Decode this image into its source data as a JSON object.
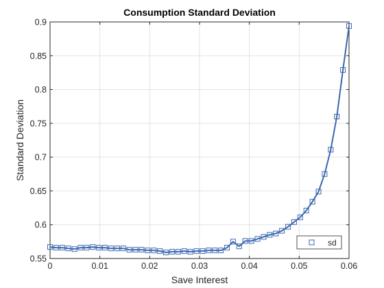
{
  "chart_data": {
    "type": "line",
    "title": "Consumption Standard Deviation",
    "xlabel": "Save Interest",
    "ylabel": "Standard Deviation",
    "xlim": [
      0,
      0.06
    ],
    "ylim": [
      0.55,
      0.9
    ],
    "x_ticks": [
      "0",
      "0.01",
      "0.02",
      "0.03",
      "0.04",
      "0.05",
      "0.06"
    ],
    "y_ticks": [
      "0.55",
      "0.6",
      "0.65",
      "0.7",
      "0.75",
      "0.8",
      "0.85",
      "0.9"
    ],
    "grid": true,
    "legend_position": "bottom-right",
    "series": [
      {
        "name": "sd",
        "color": "#3a66b0",
        "marker": "square",
        "x": [
          0,
          0.00122,
          0.00245,
          0.00367,
          0.0049,
          0.00612,
          0.00735,
          0.00857,
          0.0098,
          0.01102,
          0.01224,
          0.01347,
          0.01469,
          0.01592,
          0.01714,
          0.01837,
          0.01959,
          0.02082,
          0.02204,
          0.02327,
          0.02449,
          0.02571,
          0.02694,
          0.02816,
          0.02939,
          0.03061,
          0.03184,
          0.03306,
          0.03429,
          0.03551,
          0.03673,
          0.03796,
          0.03918,
          0.04041,
          0.04163,
          0.04286,
          0.04408,
          0.0453,
          0.04653,
          0.04776,
          0.04898,
          0.0502,
          0.05143,
          0.05265,
          0.05388,
          0.0551,
          0.05633,
          0.05755,
          0.05878,
          0.06
        ],
        "values": [
          0.567,
          0.566,
          0.566,
          0.565,
          0.564,
          0.566,
          0.566,
          0.567,
          0.566,
          0.566,
          0.565,
          0.565,
          0.565,
          0.563,
          0.563,
          0.563,
          0.562,
          0.562,
          0.561,
          0.559,
          0.56,
          0.56,
          0.561,
          0.56,
          0.561,
          0.561,
          0.562,
          0.562,
          0.562,
          0.566,
          0.575,
          0.568,
          0.576,
          0.576,
          0.579,
          0.582,
          0.585,
          0.587,
          0.591,
          0.597,
          0.604,
          0.611,
          0.621,
          0.634,
          0.649,
          0.675,
          0.711,
          0.76,
          0.829,
          0.894
        ]
      }
    ]
  }
}
